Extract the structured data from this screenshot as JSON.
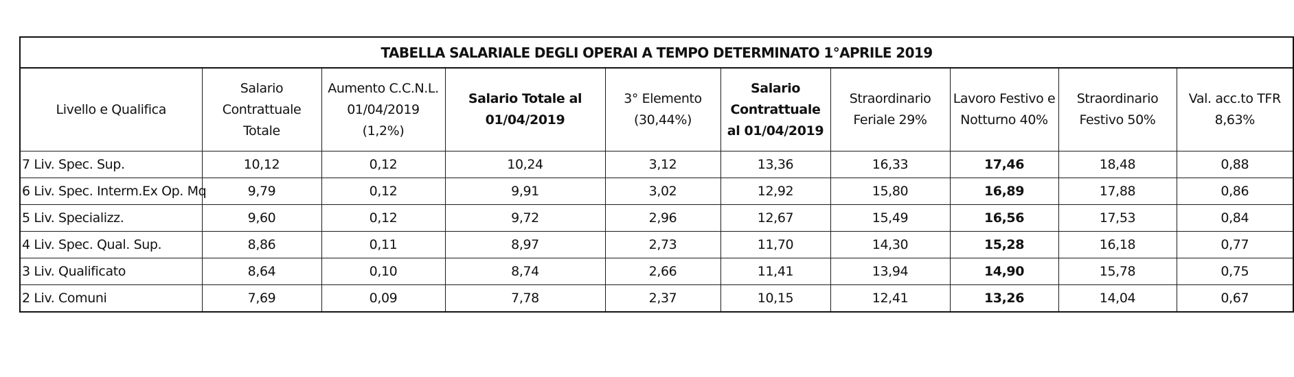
{
  "title": "TABELLA SALARIALE DEGLI OPERAI A TEMPO DETERMINATO 1°APRILE 2019",
  "headers": [
    "Livello e Qualifica",
    "Salario Contrattuale Totale",
    "Aumento C.C.N.L. 01/04/2019 (1,2%)",
    "Salario Totale al 01/04/2019",
    "3° Elemento (30,44%)",
    "Salario Contrattuale al 01/04/2019",
    "Straordinario Feriale 29%",
    "Lavoro Festivo e Notturno 40%",
    "Straordinario Festivo 50%",
    "Val. acc.to TFR 8,63%"
  ],
  "rows": [
    [
      "7 Liv. Spec. Sup.",
      "10,12",
      "0,12",
      "10,24",
      "3,12",
      "13,36",
      "16,33",
      "17,46",
      "18,48",
      "0,88"
    ],
    [
      "6 Liv. Spec. Interm.Ex Op. Mq",
      "9,79",
      "0,12",
      "9,91",
      "3,02",
      "12,92",
      "15,80",
      "16,89",
      "17,88",
      "0,86"
    ],
    [
      "5 Liv. Specializz.",
      "9,60",
      "0,12",
      "9,72",
      "2,96",
      "12,67",
      "15,49",
      "16,56",
      "17,53",
      "0,84"
    ],
    [
      "4 Liv. Spec. Qual. Sup.",
      "8,86",
      "0,11",
      "8,97",
      "2,73",
      "11,70",
      "14,30",
      "15,28",
      "16,18",
      "0,77"
    ],
    [
      "3 Liv. Qualificato",
      "8,64",
      "0,10",
      "8,74",
      "2,66",
      "11,41",
      "13,94",
      "14,90",
      "15,78",
      "0,75"
    ],
    [
      "2 Liv. Comuni",
      "7,69",
      "0,09",
      "7,78",
      "2,37",
      "10,15",
      "12,41",
      "13,26",
      "14,04",
      "0,67"
    ]
  ]
}
